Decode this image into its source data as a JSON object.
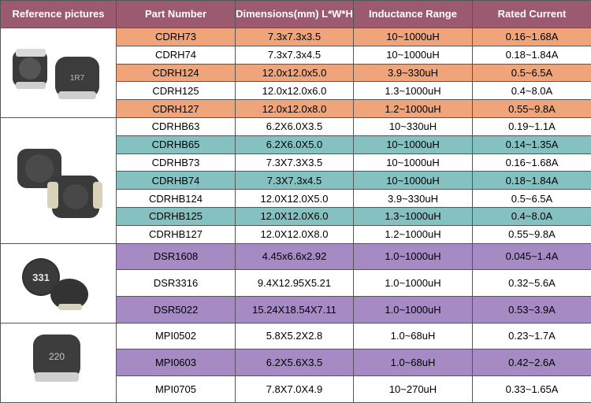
{
  "headers": [
    "Reference pictures",
    "Part Number",
    "Dimensions(mm) L*W*H",
    "Inductance Range",
    "Rated Current"
  ],
  "groups": [
    {
      "picture": "cdrh-inductor-icon",
      "marking": "1R7",
      "rows": [
        {
          "part": "CDRH73",
          "dim": "7.3x7.3x3.5",
          "ind": "10~1000uH",
          "cur": "0.16~1.68A",
          "hl": "orange"
        },
        {
          "part": "CDRH74",
          "dim": "7.3x7.3x4.5",
          "ind": "10~1000uH",
          "cur": "0.18~1.84A",
          "hl": ""
        },
        {
          "part": "CDRH124",
          "dim": "12.0x12.0x5.0",
          "ind": "3.9~330uH",
          "cur": "0.5~6.5A",
          "hl": "orange"
        },
        {
          "part": "CDRH125",
          "dim": "12.0x12.0x6.0",
          "ind": "1.3~1000uH",
          "cur": "0.4~8.0A",
          "hl": ""
        },
        {
          "part": "CDRH127",
          "dim": "12.0x12.0x8.0",
          "ind": "1.2~1000uH",
          "cur": "0.55~9.8A",
          "hl": "orange"
        }
      ]
    },
    {
      "picture": "cdrhb-inductor-icon",
      "marking": "",
      "rows": [
        {
          "part": "CDRHB63",
          "dim": "6.2X6.0X3.5",
          "ind": "10~330uH",
          "cur": "0.19~1.1A",
          "hl": ""
        },
        {
          "part": "CDRHB65",
          "dim": "6.2X6.0X5.0",
          "ind": "10~1000uH",
          "cur": "0.14~1.35A",
          "hl": "teal"
        },
        {
          "part": "CDRHB73",
          "dim": "7.3X7.3X3.5",
          "ind": "10~1000uH",
          "cur": "0.16~1.68A",
          "hl": ""
        },
        {
          "part": "CDRHB74",
          "dim": "7.3X7.3x4.5",
          "ind": "10~1000uH",
          "cur": "0.18~1.84A",
          "hl": "teal"
        },
        {
          "part": "CDRHB124",
          "dim": "12.0X12.0X5.0",
          "ind": "3.9~330uH",
          "cur": "0.5~6.5A",
          "hl": ""
        },
        {
          "part": "CDRHB125",
          "dim": "12.0X12.0X6.0",
          "ind": "1.3~1000uH",
          "cur": "0.4~8.0A",
          "hl": "teal"
        },
        {
          "part": "CDRHB127",
          "dim": "12.0X12.0X8.0",
          "ind": "1.2~1000uH",
          "cur": "0.55~9.8A",
          "hl": ""
        }
      ]
    },
    {
      "picture": "dsr-inductor-icon",
      "marking": "331",
      "rows": [
        {
          "part": "DSR1608",
          "dim": "4.45x6.6x2.92",
          "ind": "1.0~1000uH",
          "cur": "0.045~1.4A",
          "hl": "purple"
        },
        {
          "part": "DSR3316",
          "dim": "9.4X12.95X5.21",
          "ind": "1.0~1000uH",
          "cur": "0.32~5.6A",
          "hl": ""
        },
        {
          "part": "DSR5022",
          "dim": "15.24X18.54X7.11",
          "ind": "1.0~1000uH",
          "cur": "0.53~3.9A",
          "hl": "purple"
        }
      ]
    },
    {
      "picture": "mpi-inductor-icon",
      "marking": "220",
      "rows": [
        {
          "part": "MPI0502",
          "dim": "5.8X5.2X2.8",
          "ind": "1.0~68uH",
          "cur": "0.23~1.7A",
          "hl": ""
        },
        {
          "part": "MPI0603",
          "dim": "6.2X5.6X3.5",
          "ind": "1.0~68uH",
          "cur": "0.42~2.6A",
          "hl": "purple"
        },
        {
          "part": "MPI0705",
          "dim": "7.8X7.0X4.9",
          "ind": "10~270uH",
          "cur": "0.33~1.65A",
          "hl": ""
        }
      ]
    }
  ]
}
